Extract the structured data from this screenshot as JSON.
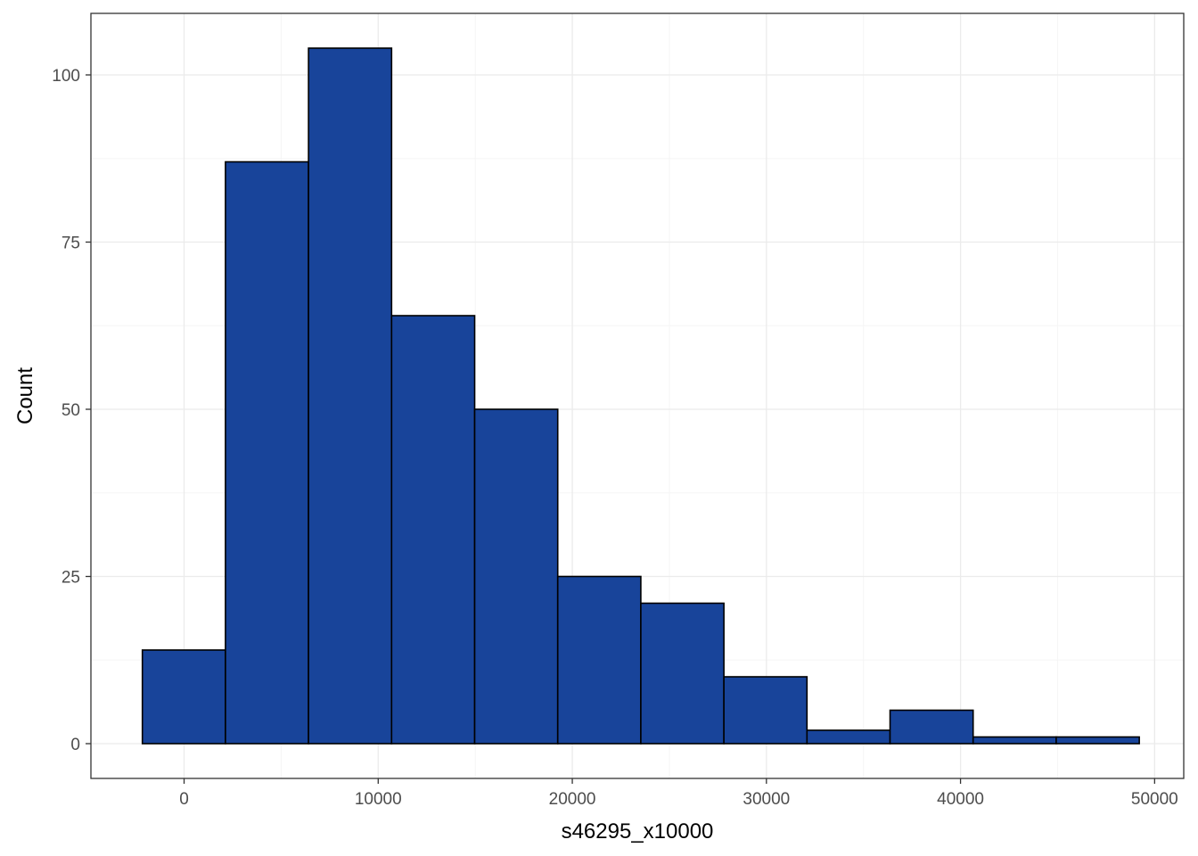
{
  "chart_data": {
    "type": "bar",
    "subtype": "histogram",
    "title": "",
    "xlabel": "s46295_x10000",
    "ylabel": "Count",
    "xlim": [
      -4800,
      51500
    ],
    "ylim": [
      -5.2,
      109.2
    ],
    "x_ticks": [
      0,
      10000,
      20000,
      30000,
      40000,
      50000
    ],
    "x_tick_labels": [
      "0",
      "10000",
      "20000",
      "30000",
      "40000",
      "50000"
    ],
    "y_ticks": [
      0,
      25,
      50,
      75,
      100
    ],
    "y_tick_labels": [
      "0",
      "25",
      "50",
      "75",
      "100"
    ],
    "bins": [
      {
        "x0": -2150,
        "x1": 2130,
        "count": 14
      },
      {
        "x0": 2130,
        "x1": 6410,
        "count": 87
      },
      {
        "x0": 6410,
        "x1": 10690,
        "count": 104
      },
      {
        "x0": 10690,
        "x1": 14970,
        "count": 64
      },
      {
        "x0": 14970,
        "x1": 19250,
        "count": 50
      },
      {
        "x0": 19250,
        "x1": 23530,
        "count": 25
      },
      {
        "x0": 23530,
        "x1": 27810,
        "count": 21
      },
      {
        "x0": 27810,
        "x1": 32090,
        "count": 10
      },
      {
        "x0": 32090,
        "x1": 36370,
        "count": 2
      },
      {
        "x0": 36370,
        "x1": 40650,
        "count": 5
      },
      {
        "x0": 40650,
        "x1": 44930,
        "count": 1
      },
      {
        "x0": 44930,
        "x1": 49210,
        "count": 1
      }
    ],
    "grid": true,
    "theme": "bw",
    "colors": {
      "bar_fill": "#18449a",
      "bar_stroke": "#000000",
      "grid_major": "#ebebeb",
      "grid_minor": "#f5f5f5",
      "panel_border": "#333333"
    }
  }
}
